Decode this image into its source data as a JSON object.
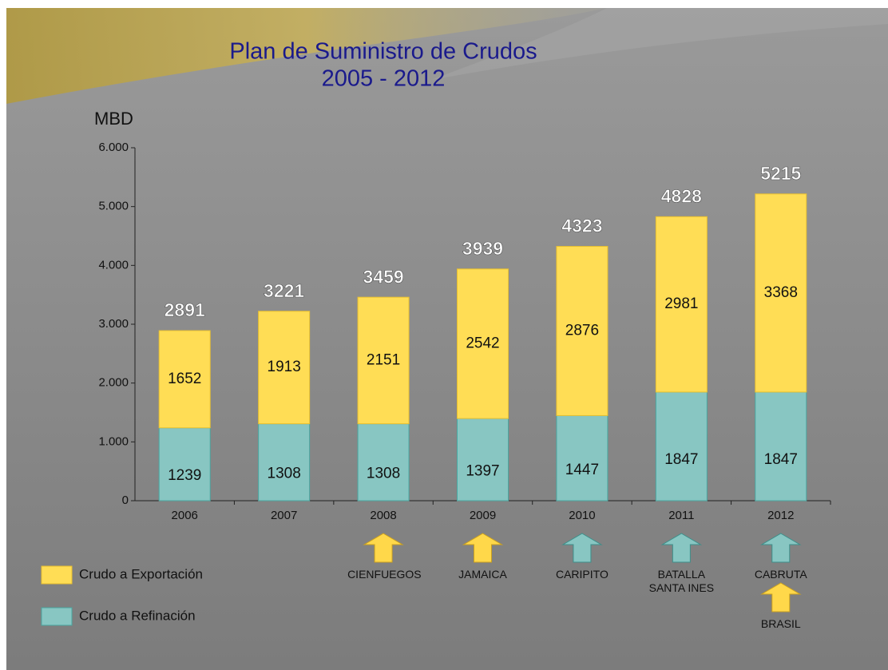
{
  "chart_data": {
    "type": "bar",
    "stacked": true,
    "title": "Plan de Suministro de Crudos",
    "subtitle": "2005 - 2012",
    "y_label": "MBD",
    "categories": [
      "2006",
      "2007",
      "2008",
      "2009",
      "2010",
      "2011",
      "2012"
    ],
    "series": [
      {
        "name": "Crudo a Refinación",
        "color": "#88c6c2",
        "values": [
          1239,
          1308,
          1308,
          1397,
          1447,
          1847,
          1847
        ]
      },
      {
        "name": "Crudo a Exportación",
        "color": "#ffdd55",
        "values": [
          1652,
          1913,
          2151,
          2542,
          2876,
          2981,
          3368
        ]
      }
    ],
    "totals": [
      2891,
      3221,
      3459,
      3939,
      4323,
      4828,
      5215
    ],
    "ylim": [
      0,
      6000
    ],
    "yticks": [
      0,
      {
        "value": 1000,
        "label": "1.000"
      },
      {
        "value": 2000,
        "label": "2.000"
      },
      {
        "value": 3000,
        "label": "3.000"
      },
      {
        "value": 4000,
        "label": "4.000"
      },
      {
        "value": 5000,
        "label": "5.000"
      },
      {
        "value": 6000,
        "label": "6.000"
      }
    ],
    "annotations": [
      {
        "label": "CIENFUEGOS",
        "category": "2008",
        "color": "#ffd84a"
      },
      {
        "label": "JAMAICA",
        "category": "2009",
        "color": "#ffd84a"
      },
      {
        "label": "CARIPITO",
        "category": "2010",
        "color": "#88c6c2"
      },
      {
        "label": "BATALLA SANTA INES",
        "category": "2011",
        "color": "#88c6c2"
      },
      {
        "label": "CABRUTA",
        "category": "2012",
        "color": "#88c6c2"
      },
      {
        "label": "BRASIL",
        "category": "2012",
        "color": "#ffd84a"
      }
    ]
  }
}
